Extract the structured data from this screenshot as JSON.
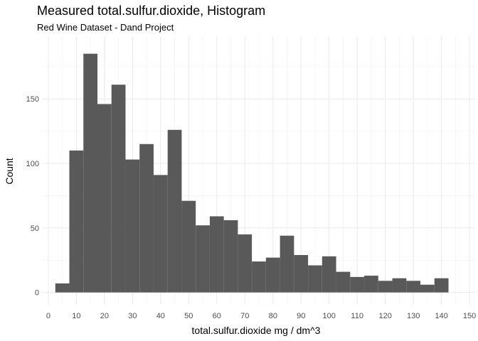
{
  "chart_data": {
    "type": "bar",
    "title": "Measured total.sulfur.dioxide, Histogram",
    "subtitle": "Red Wine Dataset - Dand Project",
    "xlabel": "total.sulfur.dioxide mg / dm^3",
    "ylabel": "Count",
    "xlim": [
      -2,
      152
    ],
    "ylim": [
      -9,
      198
    ],
    "x_ticks": [
      0,
      10,
      20,
      30,
      40,
      50,
      60,
      70,
      80,
      90,
      100,
      110,
      120,
      130,
      140,
      150
    ],
    "y_ticks": [
      0,
      50,
      100,
      150
    ],
    "grid": true,
    "bar_color": "#595959",
    "bin_width": 5,
    "bin_starts": [
      2.5,
      7.5,
      12.5,
      17.5,
      22.5,
      27.5,
      32.5,
      37.5,
      42.5,
      47.5,
      52.5,
      57.5,
      62.5,
      67.5,
      72.5,
      77.5,
      82.5,
      87.5,
      92.5,
      97.5,
      102.5,
      107.5,
      112.5,
      117.5,
      122.5,
      127.5,
      132.5,
      137.5,
      142.5
    ],
    "values": [
      7,
      110,
      185,
      146,
      161,
      103,
      115,
      91,
      126,
      71,
      52,
      59,
      56,
      45,
      24,
      27,
      44,
      29,
      21,
      28,
      16,
      12,
      13,
      9,
      11,
      9,
      6,
      11,
      0
    ]
  }
}
